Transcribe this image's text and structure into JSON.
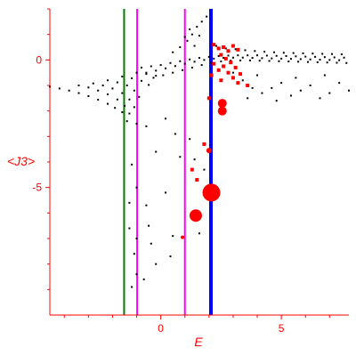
{
  "chart_data": {
    "type": "scatter",
    "xlabel": "E",
    "ylabel": "<J3>",
    "xlim": [
      -4.6,
      7.8
    ],
    "ylim": [
      -10.0,
      2.0
    ],
    "x_ticks": [
      {
        "value": 0,
        "label": "0"
      },
      {
        "value": 5,
        "label": "5"
      }
    ],
    "y_ticks": [
      {
        "value": 0,
        "label": "0"
      },
      {
        "value": -5,
        "label": "-5"
      }
    ],
    "vertical_lines": [
      {
        "x": -1.52,
        "color": "#008000",
        "width": 2
      },
      {
        "x": -0.98,
        "color": "#ff00ff",
        "width": 2
      },
      {
        "x": 1.0,
        "color": "#ff00ff",
        "width": 2
      },
      {
        "x": 2.08,
        "color": "#0000ff",
        "width": 4
      }
    ],
    "series": [
      {
        "color": "#000000",
        "marker": "dot",
        "points": [
          [
            -4.6,
            -1.05
          ],
          [
            -4.2,
            -1.12
          ],
          [
            -3.8,
            -1.2
          ],
          [
            -3.4,
            -1.3
          ],
          [
            -3.0,
            -1.42
          ],
          [
            -2.6,
            -1.56
          ],
          [
            -2.2,
            -1.72
          ],
          [
            -1.9,
            -1.88
          ],
          [
            -1.6,
            -2.05
          ],
          [
            -3.4,
            -1.0
          ],
          [
            -3.0,
            -1.08
          ],
          [
            -2.6,
            -1.2
          ],
          [
            -2.2,
            -1.35
          ],
          [
            -1.8,
            -1.55
          ],
          [
            -1.5,
            -1.8
          ],
          [
            -1.3,
            -2.1
          ],
          [
            -2.8,
            -0.92
          ],
          [
            -2.4,
            -1.0
          ],
          [
            -2.0,
            -1.12
          ],
          [
            -1.6,
            -1.3
          ],
          [
            -1.3,
            -1.55
          ],
          [
            -1.1,
            -1.85
          ],
          [
            -2.2,
            -0.8
          ],
          [
            -1.8,
            -0.88
          ],
          [
            -1.4,
            -1.0
          ],
          [
            -1.1,
            -1.2
          ],
          [
            -0.9,
            -1.45
          ],
          [
            -1.6,
            -0.65
          ],
          [
            -1.2,
            -0.72
          ],
          [
            -0.8,
            -0.82
          ],
          [
            -0.5,
            -0.98
          ],
          [
            -1.0,
            -0.5
          ],
          [
            -0.6,
            -0.55
          ],
          [
            -0.2,
            -0.62
          ],
          [
            -0.8,
            -0.3
          ],
          [
            -0.4,
            -0.25
          ],
          [
            0.0,
            -0.2
          ],
          [
            0.4,
            -0.12
          ],
          [
            0.8,
            -0.05
          ],
          [
            1.2,
            0.02
          ],
          [
            1.6,
            0.08
          ],
          [
            2.0,
            0.12
          ],
          [
            2.4,
            0.15
          ],
          [
            2.8,
            0.17
          ],
          [
            3.2,
            0.18
          ],
          [
            3.6,
            0.18
          ],
          [
            4.0,
            0.18
          ],
          [
            4.4,
            0.17
          ],
          [
            4.8,
            0.16
          ],
          [
            5.2,
            0.15
          ],
          [
            5.6,
            0.14
          ],
          [
            6.0,
            0.13
          ],
          [
            6.4,
            0.12
          ],
          [
            6.8,
            0.11
          ],
          [
            7.2,
            0.1
          ],
          [
            7.6,
            0.09
          ],
          [
            -0.6,
            -0.5
          ],
          [
            -0.2,
            -0.42
          ],
          [
            0.2,
            -0.33
          ],
          [
            0.6,
            -0.24
          ],
          [
            1.0,
            -0.15
          ],
          [
            1.4,
            -0.07
          ],
          [
            1.8,
            0.0
          ],
          [
            2.2,
            0.05
          ],
          [
            2.6,
            0.08
          ],
          [
            3.0,
            0.09
          ],
          [
            3.4,
            0.09
          ],
          [
            3.8,
            0.08
          ],
          [
            4.2,
            0.07
          ],
          [
            4.6,
            0.06
          ],
          [
            5.0,
            0.05
          ],
          [
            5.4,
            0.04
          ],
          [
            5.8,
            0.03
          ],
          [
            6.2,
            0.02
          ],
          [
            6.6,
            0.01
          ],
          [
            7.0,
            0.0
          ],
          [
            7.4,
            -0.01
          ],
          [
            -0.3,
            -0.7
          ],
          [
            0.1,
            -0.6
          ],
          [
            0.5,
            -0.5
          ],
          [
            0.9,
            -0.4
          ],
          [
            1.3,
            -0.3
          ],
          [
            1.7,
            -0.2
          ],
          [
            2.1,
            -0.12
          ],
          [
            2.5,
            -0.06
          ],
          [
            2.9,
            -0.03
          ],
          [
            3.3,
            -0.02
          ],
          [
            3.7,
            -0.02
          ],
          [
            4.1,
            -0.03
          ],
          [
            4.5,
            -0.04
          ],
          [
            4.9,
            -0.05
          ],
          [
            5.3,
            -0.06
          ],
          [
            5.7,
            -0.07
          ],
          [
            6.1,
            -0.08
          ],
          [
            6.5,
            -0.09
          ],
          [
            6.9,
            -0.1
          ],
          [
            7.3,
            -0.11
          ],
          [
            7.7,
            -0.12
          ],
          [
            0.5,
            0.3
          ],
          [
            0.8,
            0.5
          ],
          [
            1.1,
            0.75
          ],
          [
            1.3,
            1.0
          ],
          [
            1.5,
            1.3
          ],
          [
            1.7,
            1.5
          ],
          [
            1.9,
            1.7
          ],
          [
            1.2,
            1.2
          ],
          [
            1.0,
            0.9
          ],
          [
            1.6,
            0.95
          ],
          [
            1.4,
            0.55
          ],
          [
            2.3,
            0.55
          ],
          [
            2.7,
            0.45
          ],
          [
            3.1,
            0.42
          ],
          [
            3.5,
            0.38
          ],
          [
            3.9,
            0.35
          ],
          [
            4.3,
            0.32
          ],
          [
            4.7,
            0.3
          ],
          [
            5.1,
            0.28
          ],
          [
            5.5,
            0.27
          ],
          [
            5.9,
            0.26
          ],
          [
            6.3,
            0.25
          ],
          [
            6.7,
            0.24
          ],
          [
            7.1,
            0.23
          ],
          [
            7.5,
            0.22
          ],
          [
            3.0,
            -0.5
          ],
          [
            3.4,
            -0.8
          ],
          [
            3.8,
            -1.1
          ],
          [
            4.2,
            -1.3
          ],
          [
            4.6,
            -1.1
          ],
          [
            5.0,
            -0.9
          ],
          [
            5.4,
            -1.4
          ],
          [
            5.8,
            -1.2
          ],
          [
            6.2,
            -1.0
          ],
          [
            6.6,
            -1.5
          ],
          [
            7.0,
            -1.3
          ],
          [
            7.4,
            -0.9
          ],
          [
            7.8,
            -1.2
          ],
          [
            4.0,
            -0.6
          ],
          [
            5.6,
            -0.7
          ],
          [
            6.8,
            -0.6
          ],
          [
            3.6,
            -1.5
          ],
          [
            4.8,
            -1.6
          ],
          [
            -1.4,
            -2.4
          ],
          [
            -1.0,
            -2.5
          ],
          [
            -0.6,
            -2.6
          ],
          [
            0.2,
            -2.3
          ],
          [
            0.6,
            -2.9
          ],
          [
            1.2,
            -3.1
          ],
          [
            -0.2,
            -3.6
          ],
          [
            0.8,
            -3.8
          ],
          [
            1.4,
            -3.9
          ],
          [
            -1.2,
            -4.1
          ],
          [
            1.8,
            -4.3
          ],
          [
            -1.0,
            -5.0
          ],
          [
            -1.3,
            -5.6
          ],
          [
            -0.6,
            -5.7
          ],
          [
            0.2,
            -5.2
          ],
          [
            -0.5,
            -6.5
          ],
          [
            -1.3,
            -6.6
          ],
          [
            0.5,
            -6.9
          ],
          [
            -1.0,
            -7.0
          ],
          [
            -1.1,
            -7.6
          ],
          [
            -0.4,
            -7.2
          ],
          [
            0.4,
            -7.7
          ],
          [
            -1.0,
            -8.4
          ],
          [
            -0.7,
            -8.6
          ],
          [
            -1.2,
            -8.9
          ],
          [
            1.6,
            -6.8
          ],
          [
            -0.2,
            -8.0
          ]
        ]
      },
      {
        "color": "#ff0000",
        "marker": "square",
        "points": [
          [
            2.2,
            0.6
          ],
          [
            2.4,
            0.45
          ],
          [
            2.6,
            0.5
          ],
          [
            2.8,
            0.35
          ],
          [
            3.0,
            0.55
          ],
          [
            3.2,
            0.4
          ],
          [
            2.5,
            0.2
          ],
          [
            2.7,
            0.05
          ],
          [
            2.9,
            -0.1
          ],
          [
            3.1,
            -0.3
          ],
          [
            3.3,
            -0.55
          ],
          [
            2.6,
            -0.25
          ],
          [
            2.8,
            -0.5
          ],
          [
            3.0,
            -0.7
          ],
          [
            3.2,
            -0.9
          ],
          [
            3.6,
            -1.0
          ],
          [
            2.2,
            -0.15
          ],
          [
            2.4,
            -0.4
          ],
          [
            2.5,
            -0.8
          ],
          [
            2.1,
            -0.6
          ],
          [
            2.0,
            -1.5
          ],
          [
            1.8,
            -3.3
          ],
          [
            1.3,
            -4.3
          ],
          [
            1.5,
            -4.7
          ]
        ]
      },
      {
        "color": "#ff0000",
        "marker": "circle",
        "points": [
          {
            "x": 2.55,
            "y": -1.7,
            "size": 5
          },
          {
            "x": 2.55,
            "y": -2.0,
            "size": 5
          },
          {
            "x": 2.1,
            "y": -5.2,
            "size": 10
          },
          {
            "x": 1.45,
            "y": -6.1,
            "size": 7
          },
          {
            "x": 2.0,
            "y": -3.55,
            "size": 3
          },
          {
            "x": 0.9,
            "y": -6.95,
            "size": 2
          }
        ]
      }
    ]
  }
}
